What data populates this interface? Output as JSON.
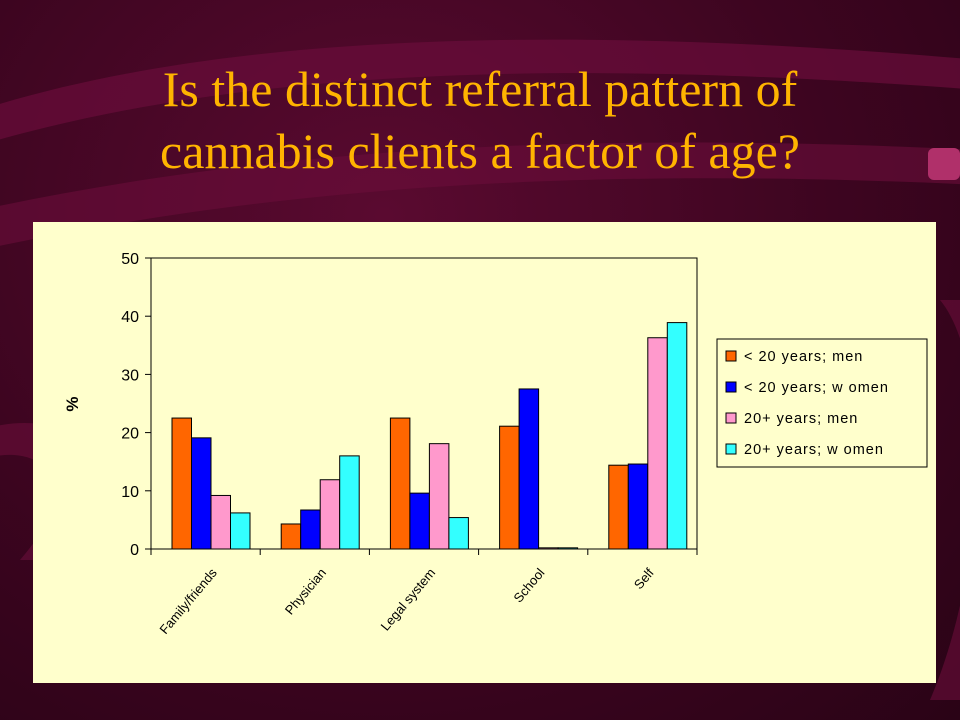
{
  "slide": {
    "title_line1": "Is the distinct referral pattern of",
    "title_line2": "cannabis clients a factor of age?"
  },
  "colors": {
    "background": "#4a0826",
    "title": "#ffb400",
    "panel": "#ffffcc"
  },
  "chart_data": {
    "type": "bar",
    "categories": [
      "Family/friends",
      "Physician",
      "Legal system",
      "School",
      "Self"
    ],
    "series": [
      {
        "name": "< 20 years; men",
        "color": "#ff6600",
        "values": [
          22.5,
          4.3,
          22.5,
          21.1,
          14.4
        ]
      },
      {
        "name": "< 20 years; w omen",
        "color": "#0000ff",
        "values": [
          19.1,
          6.7,
          9.6,
          27.5,
          14.6
        ]
      },
      {
        "name": "20+ years; men",
        "color": "#ff99cc",
        "values": [
          9.2,
          11.9,
          18.1,
          0.2,
          36.3
        ]
      },
      {
        "name": "20+ years; w omen",
        "color": "#33ffff",
        "values": [
          6.2,
          16.0,
          5.4,
          0.2,
          38.9
        ]
      }
    ],
    "xlabel": "",
    "ylabel": "%",
    "ylim": [
      0,
      50
    ],
    "yticks": [
      "0",
      "10",
      "20",
      "30",
      "40",
      "50"
    ],
    "grid": false,
    "legend": "right"
  }
}
